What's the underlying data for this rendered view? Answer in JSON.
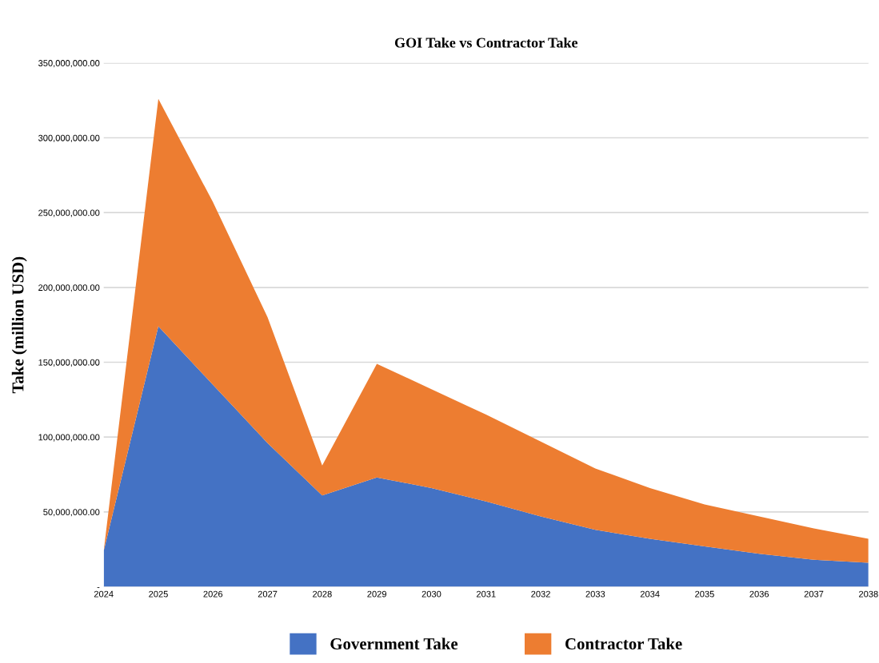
{
  "chart_data": {
    "type": "area",
    "stacked": true,
    "title": "GOI Take vs Contractor Take",
    "ylabel": "Take (million USD)",
    "categories": [
      "2024",
      "2025",
      "2026",
      "2027",
      "2028",
      "2029",
      "2030",
      "2031",
      "2032",
      "2033",
      "2034",
      "2035",
      "2036",
      "2037",
      "2038"
    ],
    "series": [
      {
        "name": "Government Take",
        "color": "#4472c4",
        "values": [
          24000000,
          174000000,
          135000000,
          96000000,
          61000000,
          73000000,
          66000000,
          57000000,
          47000000,
          38000000,
          32000000,
          27000000,
          22000000,
          18000000,
          16000000
        ]
      },
      {
        "name": "Contractor Take",
        "color": "#ed7d31",
        "values": [
          0,
          152000000,
          122000000,
          84000000,
          20000000,
          76000000,
          66000000,
          58000000,
          50000000,
          41000000,
          34000000,
          28000000,
          25000000,
          21000000,
          16000000
        ]
      }
    ],
    "ylim": [
      0,
      350000000
    ],
    "yticks": [
      {
        "value": 0,
        "label": "-"
      },
      {
        "value": 50000000,
        "label": "50,000,000.00"
      },
      {
        "value": 100000000,
        "label": "100,000,000.00"
      },
      {
        "value": 150000000,
        "label": "150,000,000.00"
      },
      {
        "value": 200000000,
        "label": "200,000,000.00"
      },
      {
        "value": 250000000,
        "label": "250,000,000.00"
      },
      {
        "value": 300000000,
        "label": "300,000,000.00"
      },
      {
        "value": 350000000,
        "label": "350,000,000.00"
      }
    ],
    "grid": "y",
    "legend": "bottom"
  }
}
